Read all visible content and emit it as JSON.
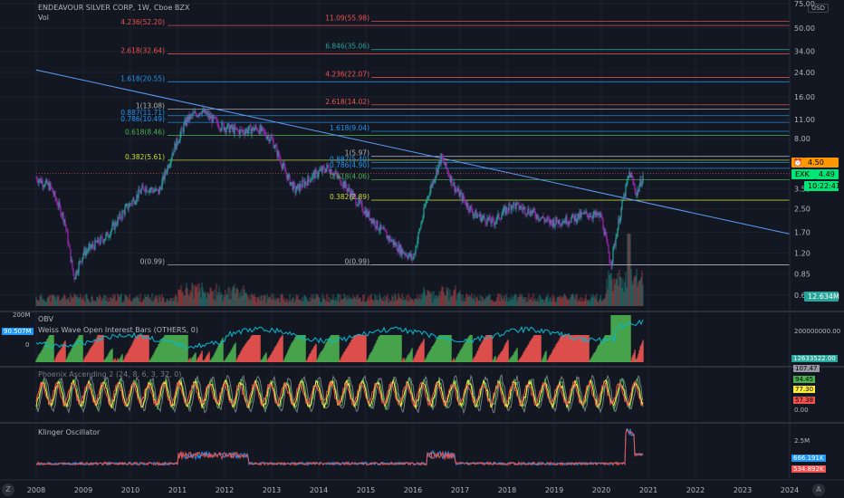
{
  "header": {
    "symbol_title": "ENDEAVOUR SILVER CORP, 1W, Cboe BZX",
    "vol_label": "Vol",
    "currency": "USD"
  },
  "price_axis": {
    "ticks": [
      "75.00",
      "50.00",
      "34.00",
      "24.00",
      "16.00",
      "11.00",
      "8.00",
      "5.50",
      "3.50",
      "2.50",
      "1.70",
      "1.20",
      "0.85",
      "0.60"
    ]
  },
  "time_axis": {
    "ticks": [
      "2008",
      "2009",
      "2010",
      "2011",
      "2012",
      "2013",
      "2014",
      "2015",
      "2016",
      "2017",
      "2018",
      "2019",
      "2020",
      "2021",
      "2022",
      "2023",
      "2024"
    ]
  },
  "fib_left": [
    {
      "text": "4.236(52.20)",
      "color": "#ef5350"
    },
    {
      "text": "2.618(32.64)",
      "color": "#ef5350"
    },
    {
      "text": "1.618(20.55)",
      "color": "#2196f3"
    },
    {
      "text": "1(13.08)",
      "color": "#b2b5be"
    },
    {
      "text": "0.887(11.71)",
      "color": "#2196f3"
    },
    {
      "text": "0.786(10.49)",
      "color": "#2196f3"
    },
    {
      "text": "0.618(8.46)",
      "color": "#4caf50"
    },
    {
      "text": "0.382(5.61)",
      "color": "#cddc39"
    },
    {
      "text": "0(0.99)",
      "color": "#b2b5be"
    }
  ],
  "fib_right": [
    {
      "text": "11.09(55.98)",
      "color": "#ef5350"
    },
    {
      "text": "6.846(35.06)",
      "color": "#26a69a"
    },
    {
      "text": "4.236(22.07)",
      "color": "#ef5350"
    },
    {
      "text": "2.618(14.02)",
      "color": "#ef5350"
    },
    {
      "text": "1.618(9.04)",
      "color": "#2196f3"
    },
    {
      "text": "1(5.97)",
      "color": "#b2b5be"
    },
    {
      "text": "0.887(5.40)",
      "color": "#2196f3"
    },
    {
      "text": "0.786(4.90)",
      "color": "#2196f3"
    },
    {
      "text": "0.618(4.06)",
      "color": "#4caf50"
    },
    {
      "text": "0.382(2.89)",
      "color": "#cddc39"
    },
    {
      "text": "0(0.99)",
      "color": "#b2b5be"
    }
  ],
  "price_badges": {
    "last_price": "4.50",
    "exx_label": "EXK",
    "exx_price": "4.49",
    "countdown": "10:22:41",
    "volume": "12.634M"
  },
  "obv_pane": {
    "title": "OBV",
    "subtitle": "Weiss Wave Open Interest Bars (OTHERS, 0)",
    "left_ticks": [
      "200M",
      "0"
    ],
    "left_value": "90.507M",
    "right_tick": "200000000.00",
    "right_value": "12633522.00"
  },
  "phoenix_pane": {
    "title": "Phoenix Ascending 2 (24, 8, 6, 3, 32, 0)",
    "values": [
      {
        "text": "107.47",
        "color": "#b2b5be"
      },
      {
        "text": "94.45",
        "color": "#4caf50"
      },
      {
        "text": "77.30",
        "color": "#ffeb3b"
      },
      {
        "text": "57.38",
        "color": "#ef5350"
      }
    ],
    "ticks": [
      "100.00",
      "50.00",
      "0.00"
    ]
  },
  "klinger_pane": {
    "title": "Klinger Oscillator",
    "tick": "2.5M",
    "values": [
      {
        "text": "666.191K",
        "color": "#2196f3"
      },
      {
        "text": "534.892K",
        "color": "#ef5350"
      }
    ]
  },
  "chart_data": {
    "type": "candlestick",
    "title": "ENDEAVOUR SILVER CORP, 1W, Cboe BZX",
    "y_scale": "log",
    "ylim": [
      0.5,
      75
    ],
    "xlim": [
      "2008",
      "2024"
    ],
    "price_path": [
      {
        "x": "2008.0",
        "y": 4.2
      },
      {
        "x": "2008.3",
        "y": 3.6
      },
      {
        "x": "2008.6",
        "y": 2.1
      },
      {
        "x": "2008.8",
        "y": 0.8
      },
      {
        "x": "2009.0",
        "y": 1.2
      },
      {
        "x": "2009.5",
        "y": 1.6
      },
      {
        "x": "2009.9",
        "y": 2.5
      },
      {
        "x": "2010.3",
        "y": 3.6
      },
      {
        "x": "2010.6",
        "y": 3.3
      },
      {
        "x": "2010.9",
        "y": 6.5
      },
      {
        "x": "2011.2",
        "y": 11.0
      },
      {
        "x": "2011.5",
        "y": 12.8
      },
      {
        "x": "2011.9",
        "y": 10.0
      },
      {
        "x": "2012.3",
        "y": 9.0
      },
      {
        "x": "2012.7",
        "y": 9.5
      },
      {
        "x": "2013.0",
        "y": 8.0
      },
      {
        "x": "2013.3",
        "y": 4.5
      },
      {
        "x": "2013.5",
        "y": 3.4
      },
      {
        "x": "2013.9",
        "y": 4.4
      },
      {
        "x": "2014.2",
        "y": 5.0
      },
      {
        "x": "2014.5",
        "y": 3.9
      },
      {
        "x": "2014.9",
        "y": 2.6
      },
      {
        "x": "2015.3",
        "y": 1.8
      },
      {
        "x": "2015.7",
        "y": 1.3
      },
      {
        "x": "2016.0",
        "y": 1.1
      },
      {
        "x": "2016.3",
        "y": 3.0
      },
      {
        "x": "2016.6",
        "y": 5.9
      },
      {
        "x": "2016.9",
        "y": 3.5
      },
      {
        "x": "2017.3",
        "y": 2.3
      },
      {
        "x": "2017.7",
        "y": 2.0
      },
      {
        "x": "2018.1",
        "y": 2.7
      },
      {
        "x": "2018.5",
        "y": 2.4
      },
      {
        "x": "2018.9",
        "y": 2.0
      },
      {
        "x": "2019.3",
        "y": 2.1
      },
      {
        "x": "2019.7",
        "y": 2.3
      },
      {
        "x": "2020.0",
        "y": 2.2
      },
      {
        "x": "2020.2",
        "y": 1.0
      },
      {
        "x": "2020.4",
        "y": 2.3
      },
      {
        "x": "2020.6",
        "y": 4.6
      },
      {
        "x": "2020.75",
        "y": 3.2
      },
      {
        "x": "2020.9",
        "y": 4.5
      }
    ],
    "last_price": 4.5,
    "fib_levels_left": [
      52.2,
      32.64,
      20.55,
      13.08,
      11.71,
      10.49,
      8.46,
      5.61,
      0.99
    ],
    "fib_levels_right": [
      55.98,
      35.06,
      22.07,
      14.02,
      9.04,
      5.97,
      5.4,
      4.9,
      4.06,
      2.89,
      0.99
    ],
    "trendline": [
      {
        "x": "2008.0",
        "y": 25.0
      },
      {
        "x": "2024.0",
        "y": 1.65
      }
    ]
  }
}
